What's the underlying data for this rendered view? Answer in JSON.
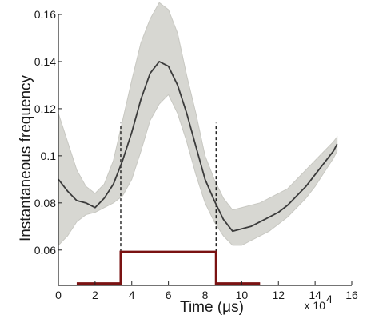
{
  "chart_data": {
    "type": "line",
    "xlabel": "Time (μs)",
    "ylabel": "Instantaneous frequency",
    "x_scale_note": "x 10",
    "x_scale_exponent": "4",
    "xlim": [
      0,
      16
    ],
    "ylim": [
      0.045,
      0.16
    ],
    "x_ticks": [
      {
        "value": 0,
        "label": "0"
      },
      {
        "value": 2,
        "label": "2"
      },
      {
        "value": 4,
        "label": "4"
      },
      {
        "value": 6,
        "label": "6"
      },
      {
        "value": 8,
        "label": "8"
      },
      {
        "value": 10,
        "label": "10"
      },
      {
        "value": 12,
        "label": "12"
      },
      {
        "value": 14,
        "label": "14"
      },
      {
        "value": 16,
        "label": "16"
      }
    ],
    "y_ticks": [
      {
        "value": 0.06,
        "label": "0.06"
      },
      {
        "value": 0.08,
        "label": "0.08"
      },
      {
        "value": 0.1,
        "label": "0.1"
      },
      {
        "value": 0.12,
        "label": "0.12"
      },
      {
        "value": 0.14,
        "label": "0.14"
      },
      {
        "value": 0.16,
        "label": "0.16"
      }
    ],
    "grid": false,
    "colors": {
      "mean_line": "#3b3b3b",
      "band_fill": "#d7d7d2",
      "band_edge": "#c8c8c2",
      "pulse": "#7a1212",
      "marker": "#111111"
    },
    "series": [
      {
        "kind": "line",
        "x": [
          0,
          0.5,
          1,
          1.5,
          2,
          2.5,
          3,
          3.5,
          4,
          4.5,
          5,
          5.5,
          6,
          6.5,
          7,
          7.5,
          8,
          8.5,
          9,
          9.5,
          10,
          10.5,
          11,
          11.5,
          12,
          12.5,
          13,
          13.5,
          14,
          14.5,
          15,
          15.2
        ],
        "y": [
          0.09,
          0.085,
          0.081,
          0.08,
          0.078,
          0.082,
          0.088,
          0.098,
          0.11,
          0.124,
          0.135,
          0.14,
          0.138,
          0.13,
          0.118,
          0.104,
          0.09,
          0.081,
          0.073,
          0.068,
          0.069,
          0.07,
          0.072,
          0.074,
          0.076,
          0.079,
          0.083,
          0.087,
          0.092,
          0.097,
          0.102,
          0.105
        ]
      },
      {
        "kind": "band",
        "x": [
          0,
          0.5,
          1,
          1.5,
          2,
          2.5,
          3,
          3.5,
          4,
          4.5,
          5,
          5.5,
          6,
          6.5,
          7,
          7.5,
          8,
          8.5,
          9,
          9.5,
          10,
          10.5,
          11,
          11.5,
          12,
          12.5,
          13,
          13.5,
          14,
          14.5,
          15,
          15.2
        ],
        "y_lower": [
          0.062,
          0.066,
          0.072,
          0.075,
          0.076,
          0.078,
          0.08,
          0.083,
          0.09,
          0.102,
          0.115,
          0.122,
          0.126,
          0.118,
          0.106,
          0.092,
          0.08,
          0.072,
          0.066,
          0.062,
          0.062,
          0.064,
          0.066,
          0.068,
          0.071,
          0.074,
          0.078,
          0.082,
          0.087,
          0.093,
          0.099,
          0.102
        ],
        "y_upper": [
          0.118,
          0.106,
          0.094,
          0.087,
          0.084,
          0.088,
          0.098,
          0.115,
          0.132,
          0.148,
          0.158,
          0.165,
          0.162,
          0.152,
          0.134,
          0.118,
          0.1,
          0.09,
          0.082,
          0.077,
          0.078,
          0.079,
          0.08,
          0.082,
          0.084,
          0.086,
          0.09,
          0.094,
          0.098,
          0.102,
          0.106,
          0.108
        ]
      },
      {
        "kind": "step",
        "x": [
          1.0,
          3.4,
          3.4,
          8.6,
          8.6,
          11.0
        ],
        "y": [
          0.0458,
          0.0458,
          0.0592,
          0.0592,
          0.0458,
          0.0458
        ]
      }
    ],
    "vertical_markers": [
      {
        "x": 3.4,
        "y_from": 0.0592,
        "y_to": 0.114
      },
      {
        "x": 8.6,
        "y_from": 0.0592,
        "y_to": 0.114
      }
    ]
  }
}
